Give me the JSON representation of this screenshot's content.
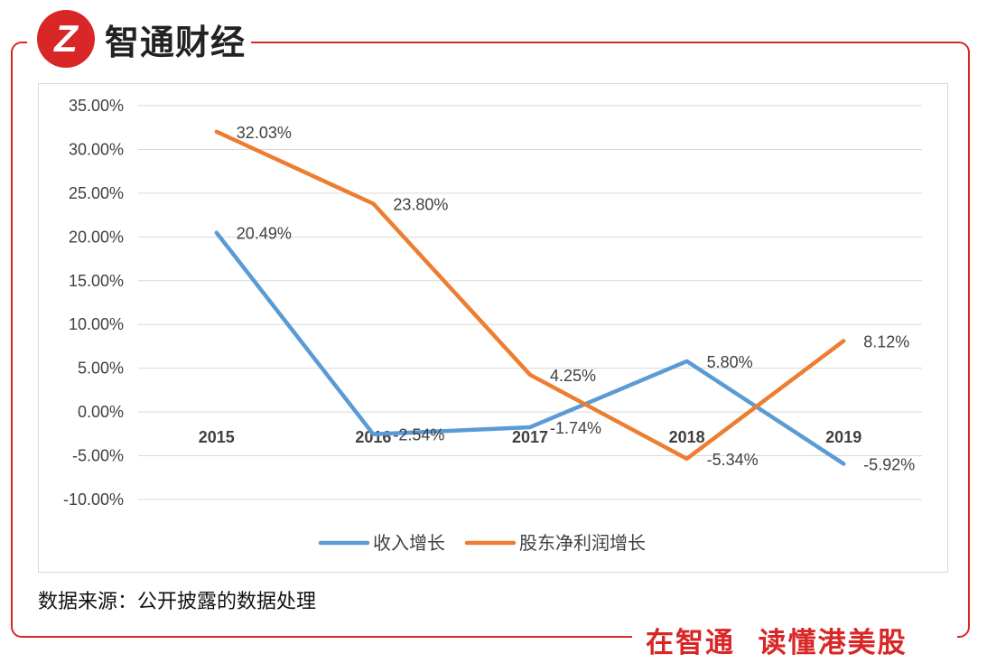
{
  "header": {
    "logo_glyph": "Z",
    "brand": "智通财经"
  },
  "footer": {
    "source": "数据来源：公开披露的数据处理",
    "slogan": "在智通  读懂港美股"
  },
  "colors": {
    "frame": "#d92626",
    "series_revenue": "#5b9bd5",
    "series_profit": "#ed7d31",
    "grid": "#d9d9d9"
  },
  "chart_data": {
    "type": "line",
    "categories": [
      "2015",
      "2016",
      "2017",
      "2018",
      "2019"
    ],
    "series": [
      {
        "name": "收入增长",
        "values": [
          20.49,
          -2.54,
          -1.74,
          5.8,
          -5.92
        ],
        "labels": [
          "20.49%",
          "-2.54%",
          "-1.74%",
          "5.80%",
          "-5.92%"
        ],
        "color": "#5b9bd5"
      },
      {
        "name": "股东净利润增长",
        "values": [
          32.03,
          23.8,
          4.25,
          -5.34,
          8.12
        ],
        "labels": [
          "32.03%",
          "23.80%",
          "4.25%",
          "-5.34%",
          "8.12%"
        ],
        "color": "#ed7d31"
      }
    ],
    "y_ticks": [
      "35.00%",
      "30.00%",
      "25.00%",
      "20.00%",
      "15.00%",
      "10.00%",
      "5.00%",
      "0.00%",
      "-5.00%",
      "-10.00%"
    ],
    "ylim": [
      -10,
      35
    ],
    "grid": true,
    "legend_position": "bottom"
  }
}
